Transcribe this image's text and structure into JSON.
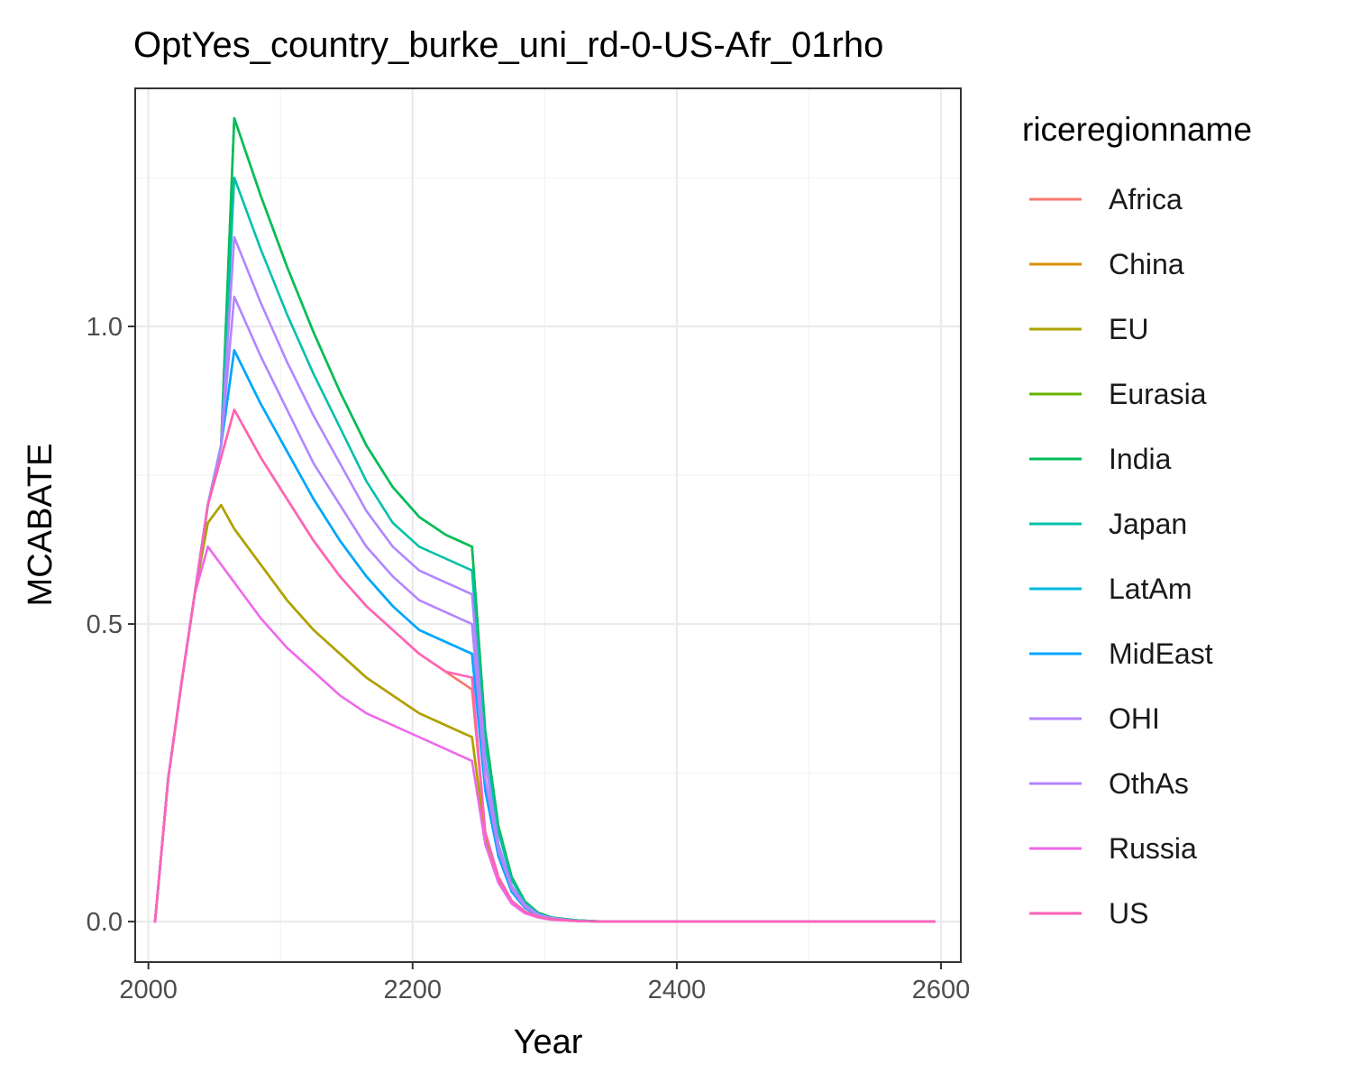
{
  "chart_data": {
    "type": "line",
    "title": "OptYes_country_burke_uni_rd-0-US-Afr_01rho",
    "xlabel": "Year",
    "ylabel": "MCABATE",
    "xlim": [
      1990,
      2615
    ],
    "ylim": [
      -0.068,
      1.4
    ],
    "x_ticks": [
      2000,
      2200,
      2400,
      2600
    ],
    "x_tick_labels": [
      "2000",
      "2200",
      "2400",
      "2600"
    ],
    "y_ticks": [
      0.0,
      0.5,
      1.0
    ],
    "y_tick_labels": [
      "0.0",
      "0.5",
      "1.0"
    ],
    "x_minor_ticks": [
      2100,
      2300,
      2500
    ],
    "y_minor_ticks": [
      0.25,
      0.75,
      1.25
    ],
    "grid": true,
    "legend": {
      "title": "riceregionname",
      "position": "right"
    },
    "series": [
      {
        "name": "Africa",
        "color": "#F8766D",
        "x": [
          2005,
          2015,
          2025,
          2035,
          2045,
          2055,
          2065,
          2085,
          2105,
          2125,
          2145,
          2165,
          2185,
          2205,
          2225,
          2245,
          2255,
          2265,
          2275,
          2285,
          2295,
          2305,
          2325,
          2345,
          2400,
          2500,
          2595
        ],
        "y": [
          0,
          0.24,
          0.4,
          0.55,
          0.7,
          0.78,
          0.86,
          0.78,
          0.71,
          0.64,
          0.58,
          0.53,
          0.49,
          0.45,
          0.42,
          0.39,
          0.15,
          0.075,
          0.035,
          0.017,
          0.008,
          0.004,
          0.001,
          0,
          0,
          0,
          0
        ]
      },
      {
        "name": "China",
        "color": "#DB8E00",
        "x": [
          2005,
          2015,
          2025,
          2035,
          2045,
          2055,
          2065,
          2085,
          2105,
          2125,
          2145,
          2165,
          2185,
          2205,
          2225,
          2245,
          2255,
          2265,
          2275,
          2285,
          2295,
          2305,
          2325,
          2345,
          2400,
          2500,
          2595
        ],
        "y": [
          0,
          0.24,
          0.4,
          0.55,
          0.67,
          0.7,
          0.66,
          0.6,
          0.54,
          0.49,
          0.45,
          0.41,
          0.38,
          0.35,
          0.33,
          0.31,
          0.14,
          0.07,
          0.033,
          0.016,
          0.008,
          0.004,
          0.001,
          0,
          0,
          0,
          0
        ]
      },
      {
        "name": "EU",
        "color": "#AEA200",
        "x": [
          2005,
          2015,
          2025,
          2035,
          2045,
          2055,
          2065,
          2085,
          2105,
          2125,
          2145,
          2165,
          2185,
          2205,
          2225,
          2245,
          2255,
          2265,
          2275,
          2285,
          2295,
          2305,
          2325,
          2345,
          2400,
          2500,
          2595
        ],
        "y": [
          0,
          0.24,
          0.4,
          0.55,
          0.67,
          0.7,
          0.66,
          0.6,
          0.54,
          0.49,
          0.45,
          0.41,
          0.38,
          0.35,
          0.33,
          0.31,
          0.14,
          0.07,
          0.033,
          0.016,
          0.008,
          0.004,
          0.001,
          0,
          0,
          0,
          0
        ]
      },
      {
        "name": "Eurasia",
        "color": "#64B200",
        "x": [
          2005,
          2015,
          2025,
          2035,
          2045,
          2055,
          2065,
          2085,
          2105,
          2125,
          2145,
          2165,
          2185,
          2205,
          2225,
          2245,
          2255,
          2265,
          2275,
          2285,
          2295,
          2305,
          2325,
          2345,
          2400,
          2500,
          2595
        ],
        "y": [
          0,
          0.24,
          0.4,
          0.55,
          0.7,
          0.8,
          1.35,
          1.22,
          1.1,
          0.99,
          0.89,
          0.8,
          0.73,
          0.68,
          0.65,
          0.63,
          0.32,
          0.16,
          0.075,
          0.034,
          0.015,
          0.007,
          0.002,
          0,
          0,
          0,
          0
        ]
      },
      {
        "name": "India",
        "color": "#00BD5C",
        "x": [
          2005,
          2015,
          2025,
          2035,
          2045,
          2055,
          2065,
          2085,
          2105,
          2125,
          2145,
          2165,
          2185,
          2205,
          2225,
          2245,
          2255,
          2265,
          2275,
          2285,
          2295,
          2305,
          2325,
          2345,
          2400,
          2500,
          2595
        ],
        "y": [
          0,
          0.24,
          0.4,
          0.55,
          0.7,
          0.8,
          1.35,
          1.22,
          1.1,
          0.99,
          0.89,
          0.8,
          0.73,
          0.68,
          0.65,
          0.63,
          0.32,
          0.16,
          0.075,
          0.034,
          0.015,
          0.007,
          0.002,
          0,
          0,
          0,
          0
        ]
      },
      {
        "name": "Japan",
        "color": "#00C1A7",
        "x": [
          2005,
          2015,
          2025,
          2035,
          2045,
          2055,
          2065,
          2085,
          2105,
          2125,
          2145,
          2165,
          2185,
          2205,
          2225,
          2245,
          2255,
          2265,
          2275,
          2285,
          2295,
          2305,
          2325,
          2345,
          2400,
          2500,
          2595
        ],
        "y": [
          0,
          0.24,
          0.4,
          0.55,
          0.7,
          0.8,
          1.25,
          1.13,
          1.02,
          0.92,
          0.83,
          0.74,
          0.67,
          0.63,
          0.61,
          0.59,
          0.3,
          0.15,
          0.07,
          0.032,
          0.014,
          0.006,
          0.002,
          0,
          0,
          0,
          0
        ]
      },
      {
        "name": "LatAm",
        "color": "#00BADE",
        "x": [
          2005,
          2015,
          2025,
          2035,
          2045,
          2055,
          2065,
          2085,
          2105,
          2125,
          2145,
          2165,
          2185,
          2205,
          2225,
          2245,
          2255,
          2265,
          2275,
          2285,
          2295,
          2305,
          2325,
          2345,
          2400,
          2500,
          2595
        ],
        "y": [
          0,
          0.24,
          0.4,
          0.55,
          0.7,
          0.8,
          0.96,
          0.87,
          0.79,
          0.71,
          0.64,
          0.58,
          0.53,
          0.49,
          0.47,
          0.45,
          0.22,
          0.11,
          0.05,
          0.023,
          0.01,
          0.005,
          0.001,
          0,
          0,
          0,
          0
        ]
      },
      {
        "name": "MidEast",
        "color": "#00A6FF",
        "x": [
          2005,
          2015,
          2025,
          2035,
          2045,
          2055,
          2065,
          2085,
          2105,
          2125,
          2145,
          2165,
          2185,
          2205,
          2225,
          2245,
          2255,
          2265,
          2275,
          2285,
          2295,
          2305,
          2325,
          2345,
          2400,
          2500,
          2595
        ],
        "y": [
          0,
          0.24,
          0.4,
          0.55,
          0.7,
          0.8,
          0.96,
          0.87,
          0.79,
          0.71,
          0.64,
          0.58,
          0.53,
          0.49,
          0.47,
          0.45,
          0.22,
          0.11,
          0.05,
          0.023,
          0.01,
          0.005,
          0.001,
          0,
          0,
          0,
          0
        ]
      },
      {
        "name": "OHI",
        "color": "#B385FF",
        "x": [
          2005,
          2015,
          2025,
          2035,
          2045,
          2055,
          2065,
          2085,
          2105,
          2125,
          2145,
          2165,
          2185,
          2205,
          2225,
          2245,
          2255,
          2265,
          2275,
          2285,
          2295,
          2305,
          2325,
          2345,
          2400,
          2500,
          2595
        ],
        "y": [
          0,
          0.24,
          0.4,
          0.55,
          0.7,
          0.8,
          1.05,
          0.95,
          0.86,
          0.77,
          0.7,
          0.63,
          0.58,
          0.54,
          0.52,
          0.5,
          0.24,
          0.12,
          0.055,
          0.025,
          0.011,
          0.005,
          0.001,
          0,
          0,
          0,
          0
        ]
      },
      {
        "name": "OthAs",
        "color": "#B385FF",
        "x": [
          2005,
          2015,
          2025,
          2035,
          2045,
          2055,
          2065,
          2085,
          2105,
          2125,
          2145,
          2165,
          2185,
          2205,
          2225,
          2245,
          2255,
          2265,
          2275,
          2285,
          2295,
          2305,
          2325,
          2345,
          2400,
          2500,
          2595
        ],
        "y": [
          0,
          0.24,
          0.4,
          0.55,
          0.7,
          0.8,
          1.15,
          1.04,
          0.94,
          0.85,
          0.77,
          0.69,
          0.63,
          0.59,
          0.57,
          0.55,
          0.27,
          0.13,
          0.06,
          0.028,
          0.012,
          0.006,
          0.001,
          0,
          0,
          0,
          0
        ]
      },
      {
        "name": "Russia",
        "color": "#EF67EB",
        "x": [
          2005,
          2015,
          2025,
          2035,
          2045,
          2055,
          2065,
          2085,
          2105,
          2125,
          2145,
          2165,
          2185,
          2205,
          2225,
          2245,
          2255,
          2265,
          2275,
          2285,
          2295,
          2305,
          2325,
          2345,
          2400,
          2500,
          2595
        ],
        "y": [
          0,
          0.24,
          0.4,
          0.55,
          0.63,
          0.6,
          0.57,
          0.51,
          0.46,
          0.42,
          0.38,
          0.35,
          0.33,
          0.31,
          0.29,
          0.27,
          0.13,
          0.065,
          0.03,
          0.014,
          0.007,
          0.003,
          0.001,
          0,
          0,
          0,
          0
        ]
      },
      {
        "name": "US",
        "color": "#FF63B6",
        "x": [
          2005,
          2015,
          2025,
          2035,
          2045,
          2055,
          2065,
          2085,
          2105,
          2125,
          2145,
          2165,
          2185,
          2205,
          2225,
          2245,
          2255,
          2265,
          2275,
          2285,
          2295,
          2305,
          2325,
          2345,
          2400,
          2500,
          2595
        ],
        "y": [
          0,
          0.24,
          0.4,
          0.55,
          0.7,
          0.78,
          0.86,
          0.78,
          0.71,
          0.64,
          0.58,
          0.53,
          0.49,
          0.45,
          0.42,
          0.41,
          0.15,
          0.075,
          0.035,
          0.017,
          0.008,
          0.004,
          0.001,
          0,
          0,
          0,
          0
        ]
      }
    ]
  }
}
